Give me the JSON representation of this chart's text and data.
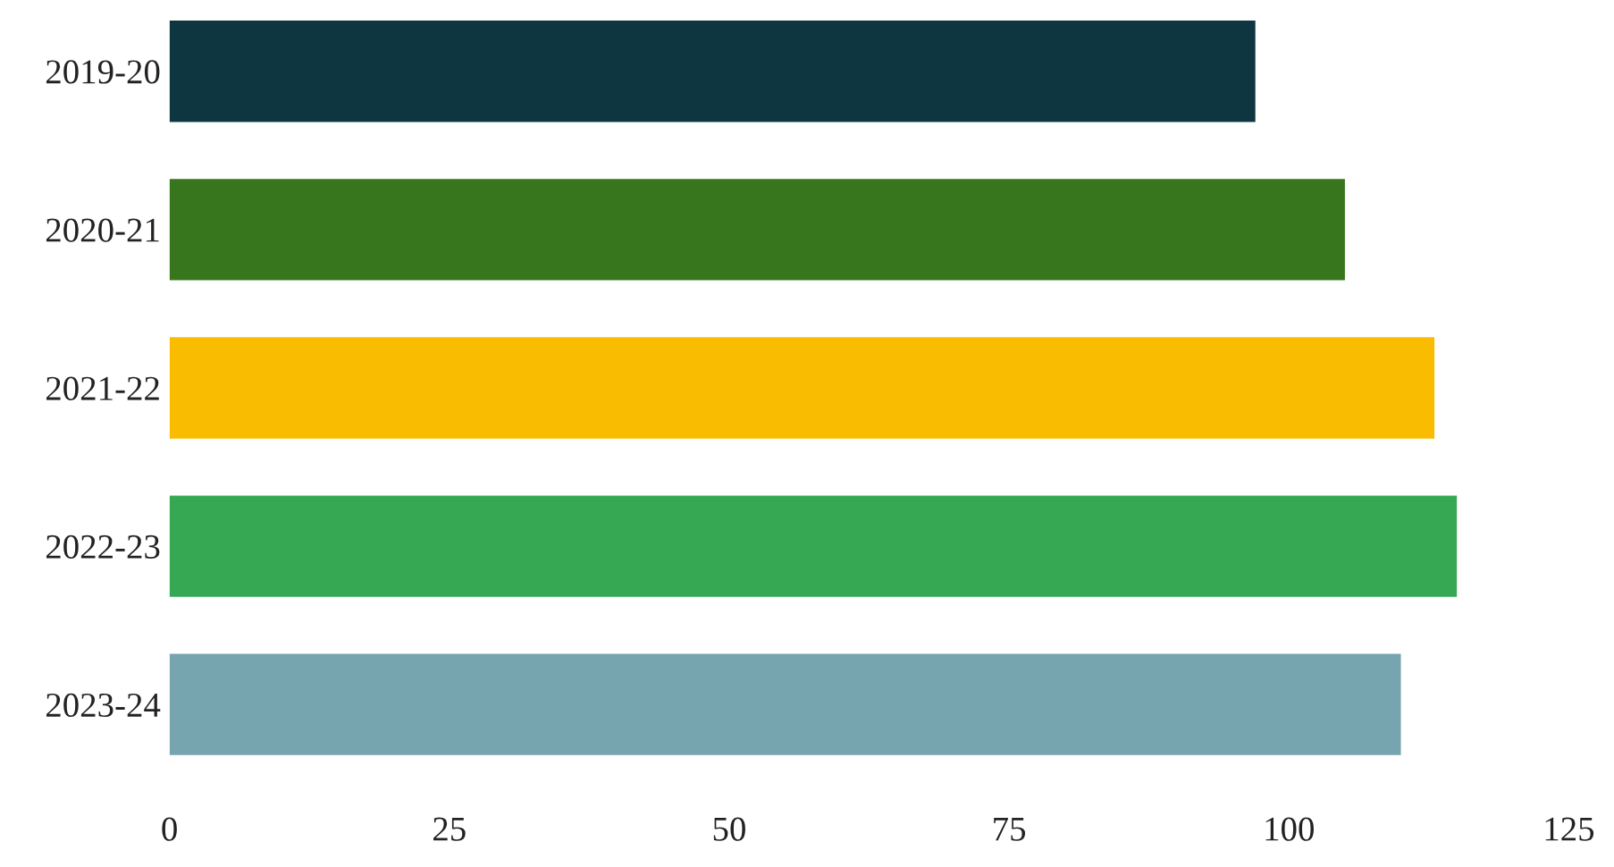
{
  "chart_data": {
    "type": "bar",
    "orientation": "horizontal",
    "categories": [
      "2019-20",
      "2020-21",
      "2021-22",
      "2022-23",
      "2023-24"
    ],
    "values": [
      97,
      105,
      113,
      115,
      110
    ],
    "colors": [
      "#0e3640",
      "#38761d",
      "#f9bc00",
      "#36a854",
      "#76a5b0"
    ],
    "xlim": [
      0,
      125
    ],
    "xticks": [
      0,
      25,
      50,
      75,
      100,
      125
    ],
    "grid": false
  }
}
